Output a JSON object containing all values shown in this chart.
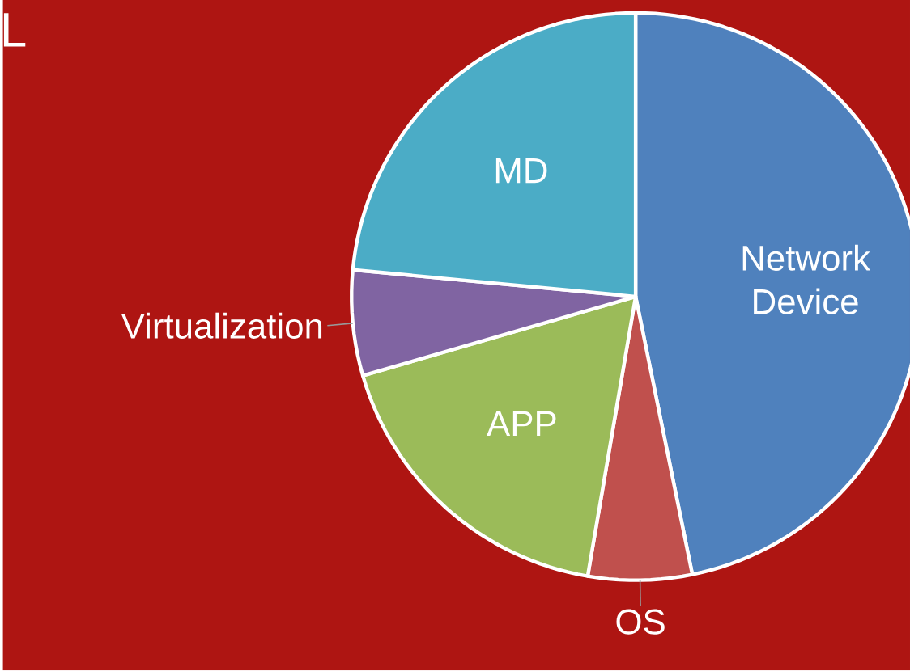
{
  "chart_data": {
    "type": "pie",
    "title": "L",
    "categories": [
      "Network Device",
      "OS",
      "APP",
      "Virtualization",
      "MD"
    ],
    "values": [
      46.8,
      5.9,
      17.8,
      6.0,
      23.5
    ],
    "colors": [
      "#4f81bd",
      "#c0504d",
      "#9bbb59",
      "#8064a2",
      "#4bacc6"
    ]
  }
}
